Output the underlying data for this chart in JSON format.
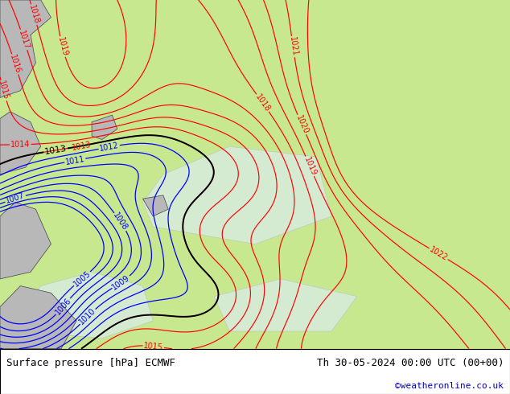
{
  "title_left": "Surface pressure [hPa] ECMWF",
  "title_right": "Th 30-05-2024 00:00 UTC (00+00)",
  "credit": "©weatheronline.co.uk",
  "bg_color": "#c8e890",
  "footer_bg": "#ffffff",
  "fig_width": 6.34,
  "fig_height": 4.9,
  "dpi": 100,
  "label_fontsize": 7,
  "footer_fontsize": 9,
  "credit_fontsize": 8,
  "credit_color": "#0000cc",
  "red_levels": [
    1013,
    1014,
    1015,
    1016,
    1017,
    1018,
    1019,
    1020,
    1021,
    1022
  ],
  "black_levels": [
    1013
  ],
  "blue_levels": [
    1005,
    1006,
    1007,
    1008,
    1009,
    1010,
    1011,
    1012
  ]
}
